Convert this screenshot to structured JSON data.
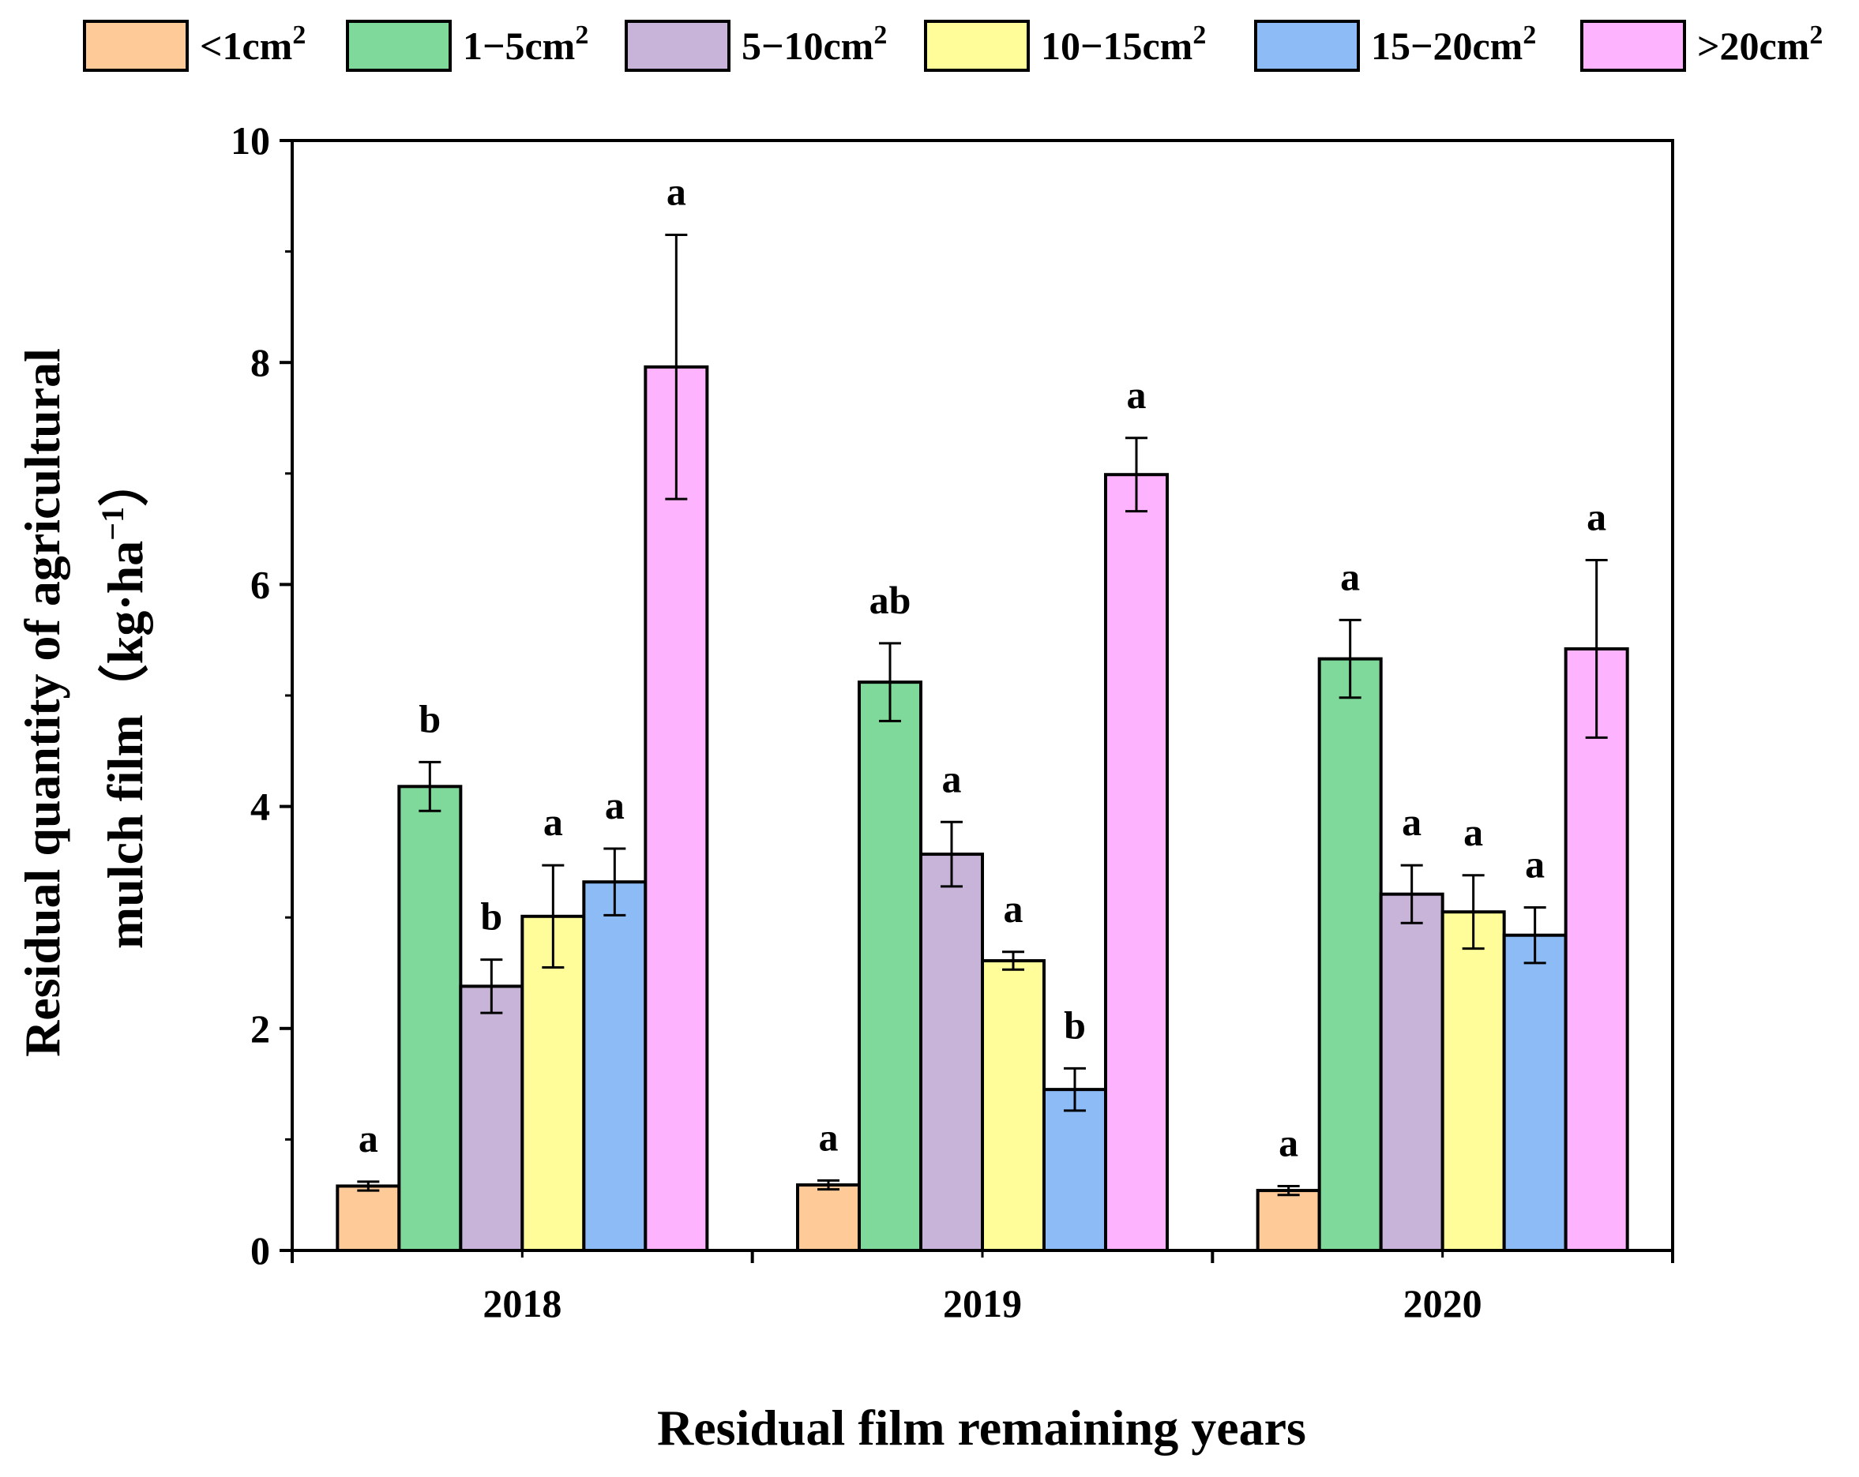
{
  "chart_data": {
    "type": "bar",
    "categories": [
      "2018",
      "2019",
      "2020"
    ],
    "series": [
      {
        "name": "<1cm",
        "sup": "2",
        "color": "#FECA98",
        "values": [
          0.58,
          0.59,
          0.54
        ],
        "errors": [
          0.04,
          0.04,
          0.04
        ],
        "letters": [
          "a",
          "a",
          "a"
        ]
      },
      {
        "name": "1−5cm",
        "sup": "2",
        "color": "#7FD99A",
        "values": [
          4.18,
          5.12,
          5.33
        ],
        "errors": [
          0.22,
          0.35,
          0.35
        ],
        "letters": [
          "b",
          "ab",
          "a"
        ]
      },
      {
        "name": "5−10cm",
        "sup": "2",
        "color": "#C8B4D9",
        "values": [
          2.38,
          3.57,
          3.21
        ],
        "errors": [
          0.24,
          0.29,
          0.26
        ],
        "letters": [
          "b",
          "a",
          "a"
        ]
      },
      {
        "name": "10−15cm",
        "sup": "2",
        "color": "#FEFD99",
        "values": [
          3.01,
          2.61,
          3.05
        ],
        "errors": [
          0.46,
          0.08,
          0.33
        ],
        "letters": [
          "a",
          "a",
          "a"
        ]
      },
      {
        "name": "15−20cm",
        "sup": "2",
        "color": "#8DBBF6",
        "values": [
          3.32,
          1.45,
          2.84
        ],
        "errors": [
          0.3,
          0.19,
          0.25
        ],
        "letters": [
          "a",
          "b",
          "a"
        ]
      },
      {
        "name": ">20cm",
        "sup": "2",
        "color": "#FEB3FE",
        "values": [
          7.96,
          6.99,
          5.42
        ],
        "errors": [
          1.19,
          0.33,
          0.8
        ],
        "letters": [
          "a",
          "a",
          "a"
        ]
      }
    ],
    "xlabel": "Residual film remaining years",
    "ylabel_line1": "Residual quantity of agricultural",
    "ylabel_line2_main": "mulch film（kg·ha",
    "ylabel_line2_sup": "−1",
    "ylabel_line2_end": "）",
    "ylim": [
      0,
      10
    ],
    "yticks": [
      0,
      2,
      4,
      6,
      8,
      10
    ],
    "legend_position": "top",
    "grid": false
  }
}
